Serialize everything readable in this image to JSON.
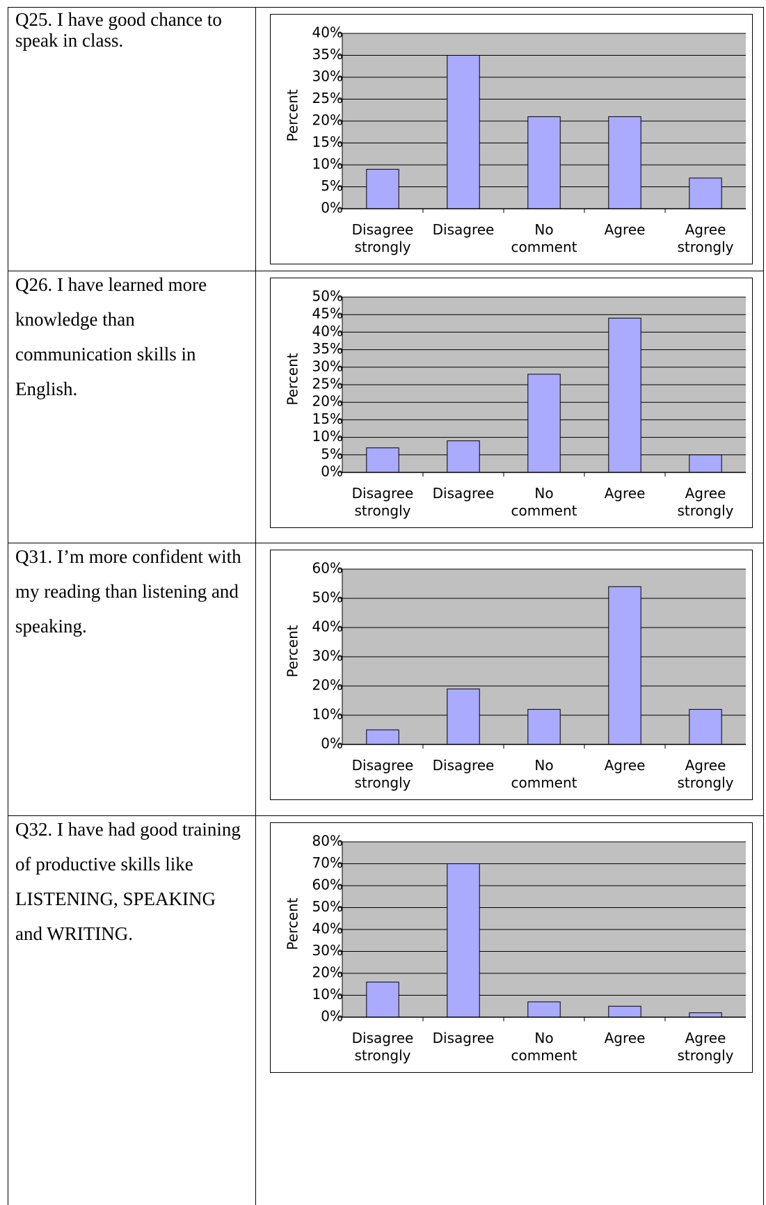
{
  "questions": [
    "Q25. I have good chance to speak in class.",
    "Q26. I have learned more knowledge than communication skills in English.",
    "Q31. I’m more confident with my reading than listening and speaking.",
    "Q32. I have had good training of productive skills like LISTENING, SPEAKING and WRITING."
  ],
  "chart_data": [
    {
      "type": "bar",
      "ylabel": "Percent",
      "categories": [
        "Disagree strongly",
        "Disagree",
        "No comment",
        "Agree",
        "Agree strongly"
      ],
      "values": [
        9,
        35,
        21,
        21,
        7
      ],
      "color": "#aaaaff",
      "background": "#c0c0c0",
      "grid": true,
      "ylim": [
        0,
        40
      ],
      "yticks": [
        {
          "value": 0,
          "label": "0%"
        },
        {
          "value": 5,
          "label": "5%"
        },
        {
          "value": 10,
          "label": "10%"
        },
        {
          "value": 15,
          "label": "15%"
        },
        {
          "value": 20,
          "label": "20%"
        },
        {
          "value": 25,
          "label": "25%"
        },
        {
          "value": 30,
          "label": "30%"
        },
        {
          "value": 35,
          "label": "35%"
        },
        {
          "value": 40,
          "label": "40%"
        }
      ]
    },
    {
      "type": "bar",
      "ylabel": "Percent",
      "categories": [
        "Disagree strongly",
        "Disagree",
        "No comment",
        "Agree",
        "Agree strongly"
      ],
      "values": [
        7,
        9,
        28,
        44,
        5
      ],
      "color": "#aaaaff",
      "background": "#c0c0c0",
      "grid": true,
      "ylim": [
        0,
        50
      ],
      "yticks": [
        {
          "value": 0,
          "label": "0%"
        },
        {
          "value": 5,
          "label": "5%"
        },
        {
          "value": 10,
          "label": "10%"
        },
        {
          "value": 15,
          "label": "15%"
        },
        {
          "value": 20,
          "label": "20%"
        },
        {
          "value": 25,
          "label": "25%"
        },
        {
          "value": 30,
          "label": "30%"
        },
        {
          "value": 35,
          "label": "35%"
        },
        {
          "value": 40,
          "label": "40%"
        },
        {
          "value": 45,
          "label": "45%"
        },
        {
          "value": 50,
          "label": "50%"
        }
      ]
    },
    {
      "type": "bar",
      "ylabel": "Percent",
      "categories": [
        "Disagree strongly",
        "Disagree",
        "No comment",
        "Agree",
        "Agree strongly"
      ],
      "values": [
        5,
        19,
        12,
        54,
        12
      ],
      "color": "#aaaaff",
      "background": "#c0c0c0",
      "grid": true,
      "ylim": [
        0,
        60
      ],
      "yticks": [
        {
          "value": 0,
          "label": "0%"
        },
        {
          "value": 10,
          "label": "10%"
        },
        {
          "value": 20,
          "label": "20%"
        },
        {
          "value": 30,
          "label": "30%"
        },
        {
          "value": 40,
          "label": "40%"
        },
        {
          "value": 50,
          "label": "50%"
        },
        {
          "value": 60,
          "label": "60%"
        }
      ]
    },
    {
      "type": "bar",
      "ylabel": "Percent",
      "categories": [
        "Disagree strongly",
        "Disagree",
        "No comment",
        "Agree",
        "Agree strongly"
      ],
      "values": [
        16,
        70,
        7,
        5,
        2
      ],
      "color": "#aaaaff",
      "background": "#c0c0c0",
      "grid": true,
      "ylim": [
        0,
        80
      ],
      "yticks": [
        {
          "value": 0,
          "label": "0%"
        },
        {
          "value": 10,
          "label": "10%"
        },
        {
          "value": 20,
          "label": "20%"
        },
        {
          "value": 30,
          "label": "30%"
        },
        {
          "value": 40,
          "label": "40%"
        },
        {
          "value": 50,
          "label": "50%"
        },
        {
          "value": 60,
          "label": "60%"
        },
        {
          "value": 70,
          "label": "70%"
        },
        {
          "value": 80,
          "label": "80%"
        }
      ]
    }
  ]
}
